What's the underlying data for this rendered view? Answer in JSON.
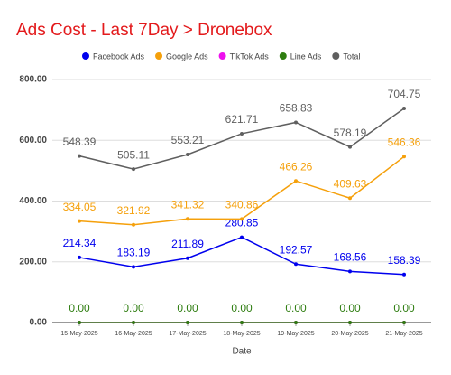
{
  "chart_data": {
    "type": "line",
    "title": "Ads Cost - Last 7Day > Dronebox",
    "x_label": "Date",
    "categories": [
      "15-May-2025",
      "16-May-2025",
      "17-May-2025",
      "18-May-2025",
      "19-May-2025",
      "20-May-2025",
      "21-May-2025"
    ],
    "series": [
      {
        "name": "Facebook Ads",
        "color": "#0000ee",
        "values": [
          214.34,
          183.19,
          211.89,
          280.85,
          192.57,
          168.56,
          158.39
        ]
      },
      {
        "name": "Google Ads",
        "color": "#f5a00b",
        "values": [
          334.05,
          321.92,
          341.32,
          340.86,
          466.26,
          409.63,
          546.36
        ]
      },
      {
        "name": "TikTok Ads",
        "color": "#ee10ee",
        "values": [
          0,
          0,
          0,
          0,
          0,
          0,
          0
        ]
      },
      {
        "name": "Line Ads",
        "color": "#2e7d10",
        "values": [
          0,
          0,
          0,
          0,
          0,
          0,
          0
        ],
        "value_labels": [
          "0.00",
          "0.00",
          "0.00",
          "0.00",
          "0.00",
          "0.00",
          "0.00"
        ]
      },
      {
        "name": "Total",
        "color": "#5f5f5f",
        "values": [
          548.39,
          505.11,
          553.21,
          621.71,
          658.83,
          578.19,
          704.75
        ]
      }
    ],
    "ylim": [
      0,
      800
    ],
    "yticks": [
      {
        "value": 0,
        "label": "0.00"
      },
      {
        "value": 200,
        "label": "200.00"
      },
      {
        "value": 400,
        "label": "400.00"
      },
      {
        "value": 600,
        "label": "600.00"
      },
      {
        "value": 800,
        "label": "800.00"
      }
    ],
    "grid": true,
    "title_color": "#e31a1c"
  }
}
